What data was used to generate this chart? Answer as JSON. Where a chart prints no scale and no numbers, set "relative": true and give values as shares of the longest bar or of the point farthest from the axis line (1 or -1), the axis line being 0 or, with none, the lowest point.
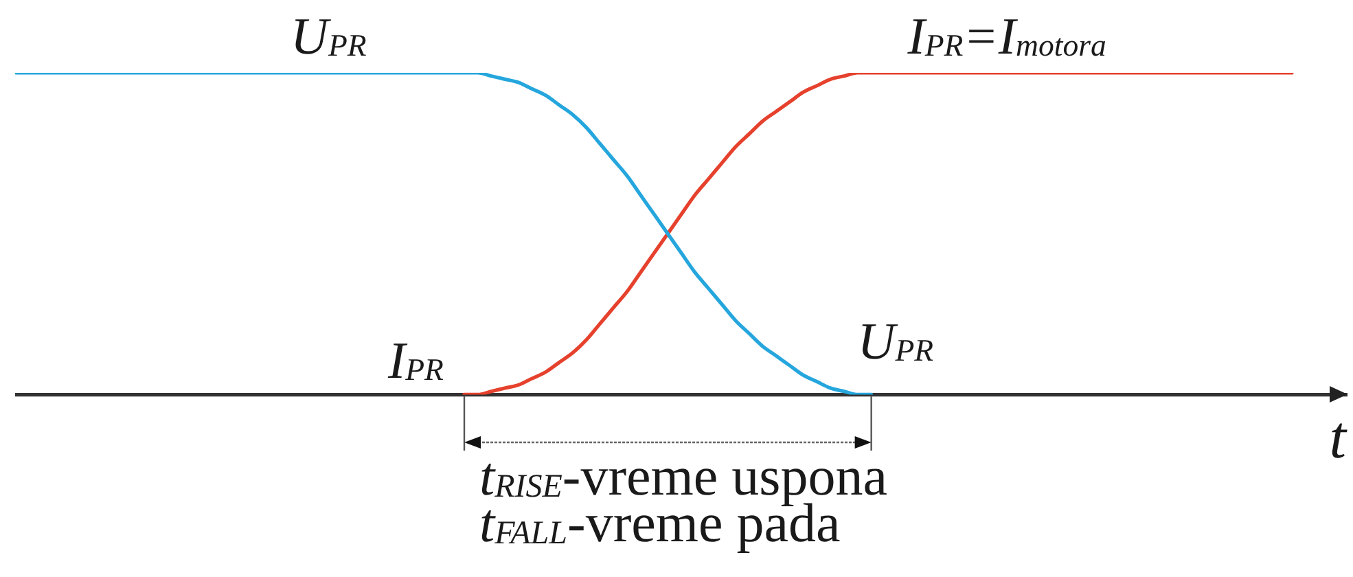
{
  "chart_data": {
    "type": "line",
    "relative": true,
    "xlabel": "t",
    "tick_labels": false,
    "categories": [
      null,
      null,
      null,
      null,
      null,
      null,
      null,
      null,
      null,
      null,
      null,
      null,
      null,
      null,
      null,
      null,
      null,
      null,
      null,
      null,
      null,
      null,
      null,
      null,
      null,
      null,
      null,
      null,
      null,
      null,
      null,
      null,
      null,
      null,
      null,
      null,
      null,
      null,
      null,
      null,
      null,
      null,
      null,
      null,
      null,
      null,
      null,
      null,
      null,
      null,
      null,
      null,
      null,
      null,
      null,
      null,
      null,
      null,
      null,
      null,
      null,
      null,
      null,
      null,
      null,
      null,
      null,
      null,
      null,
      null,
      null,
      null,
      null,
      null,
      null,
      null,
      null,
      null,
      null,
      null,
      null,
      null,
      null,
      null,
      null,
      null,
      null,
      null,
      null,
      null,
      null,
      null,
      null,
      null,
      null,
      null,
      null,
      null,
      null
    ],
    "series": [
      {
        "name": "U$_{PR}$",
        "color": "#25a6dd",
        "values": [
          1,
          1,
          1,
          1,
          1,
          1,
          1,
          1,
          1,
          1,
          1,
          1,
          1,
          1,
          1,
          1,
          1,
          1,
          1,
          1,
          1,
          1,
          1,
          1,
          1,
          1,
          1,
          1,
          1,
          1,
          1,
          1,
          1,
          1,
          1,
          0.99,
          0.98,
          0.97,
          0.95,
          0.93,
          0.9,
          0.87,
          0.83,
          0.78,
          0.73,
          0.68,
          0.62,
          0.56,
          0.5,
          0.44,
          0.38,
          0.33,
          0.28,
          0.23,
          0.19,
          0.15,
          0.12,
          0.09,
          0.06,
          0.04,
          0.02,
          0.01,
          0,
          0,
          null,
          null,
          null,
          null,
          null,
          null,
          null,
          null,
          null,
          null,
          null,
          null,
          null,
          null,
          null,
          null,
          null,
          null,
          null,
          null,
          null,
          null,
          null,
          null,
          null,
          null,
          null,
          null,
          null,
          null,
          null,
          null,
          null,
          null,
          null
        ]
      },
      {
        "name": "I$_{PR}$=I$_{motora}$",
        "color": "#e5412d",
        "values": [
          null,
          null,
          null,
          null,
          null,
          null,
          null,
          null,
          null,
          null,
          null,
          null,
          null,
          null,
          null,
          null,
          null,
          null,
          null,
          null,
          null,
          null,
          null,
          null,
          null,
          null,
          null,
          null,
          null,
          null,
          null,
          null,
          null,
          0,
          0,
          0.01,
          0.02,
          0.03,
          0.05,
          0.07,
          0.1,
          0.13,
          0.17,
          0.22,
          0.27,
          0.32,
          0.38,
          0.44,
          0.5,
          0.56,
          0.62,
          0.67,
          0.72,
          0.77,
          0.81,
          0.85,
          0.88,
          0.91,
          0.94,
          0.96,
          0.98,
          0.99,
          1,
          1,
          1,
          1,
          1,
          1,
          1,
          1,
          1,
          1,
          1,
          1,
          1,
          1,
          1,
          1,
          1,
          1,
          1,
          1,
          1,
          1,
          1,
          1,
          1,
          1,
          1,
          1,
          1,
          1,
          1,
          1,
          1,
          null,
          null,
          null,
          null
        ]
      }
    ],
    "annotations": [
      "I$_{PR}$",
      "U$_{PR}$",
      "t$_{RISE}$-vreme uspona",
      "t$_{FALL}$-vreme pada"
    ]
  }
}
